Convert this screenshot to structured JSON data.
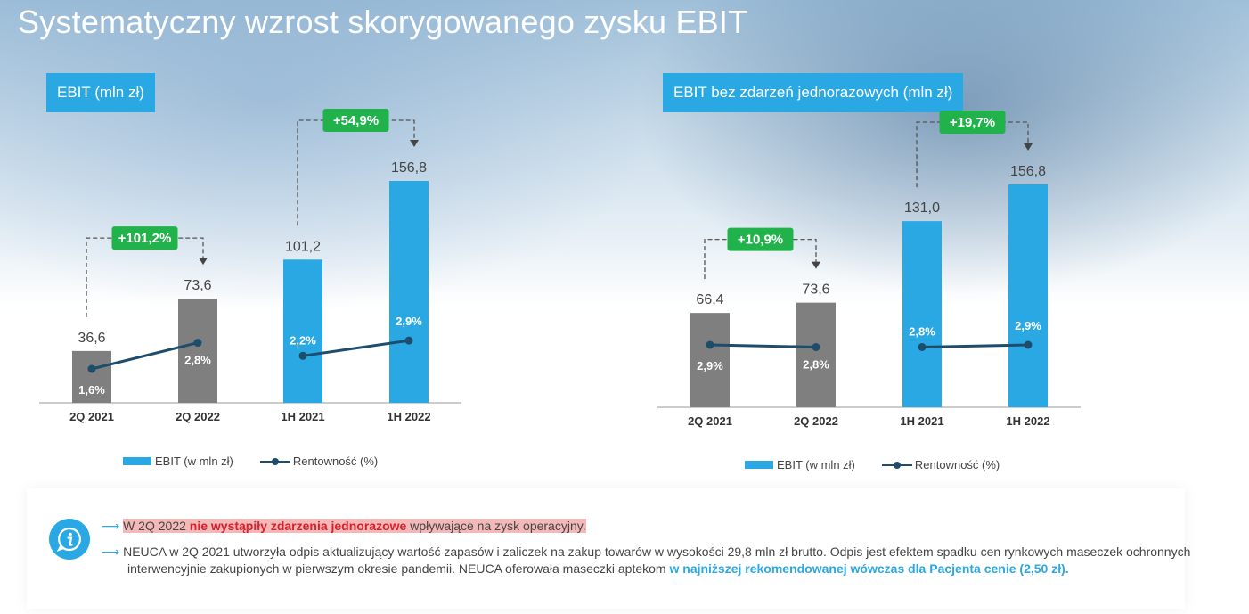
{
  "title": "Systematyczny wzrost skorygowanego zysku EBIT",
  "chart_data": [
    {
      "type": "bar",
      "title": "EBIT (mln zł)",
      "categories": [
        "2Q 2021",
        "2Q 2022",
        "1H 2021",
        "1H 2022"
      ],
      "series": [
        {
          "name": "EBIT (w mln zł)",
          "values": [
            36.6,
            73.6,
            101.2,
            156.8
          ],
          "labels": [
            "36,6",
            "73,6",
            "101,2",
            "156,8"
          ]
        },
        {
          "name": "Rentowność (%)",
          "type": "line",
          "values": [
            1.6,
            2.8,
            2.2,
            2.9
          ],
          "labels": [
            "1,6%",
            "2,8%",
            "2,2%",
            "2,9%"
          ]
        }
      ],
      "bar_colors": [
        "#7f7f7f",
        "#7f7f7f",
        "#2aa8e3",
        "#2aa8e3"
      ],
      "line_color": "#1e4d6b",
      "annotations": [
        {
          "text": "+101,2%",
          "from": "2Q 2021",
          "to": "2Q 2022",
          "color": "#21b24b"
        },
        {
          "text": "+54,9%",
          "from": "1H 2021",
          "to": "1H 2022",
          "color": "#21b24b"
        }
      ],
      "legend": "bottom"
    },
    {
      "type": "bar",
      "title": "EBIT bez zdarzeń jednorazowych (mln zł)",
      "categories": [
        "2Q 2021",
        "2Q 2022",
        "1H 2021",
        "1H 2022"
      ],
      "series": [
        {
          "name": "EBIT (w mln zł)",
          "values": [
            66.4,
            73.6,
            131.0,
            156.8
          ],
          "labels": [
            "66,4",
            "73,6",
            "131,0",
            "156,8"
          ]
        },
        {
          "name": "Rentowność (%)",
          "type": "line",
          "values": [
            2.9,
            2.8,
            2.8,
            2.9
          ],
          "labels": [
            "2,9%",
            "2,8%",
            "2,8%",
            "2,9%"
          ]
        }
      ],
      "bar_colors": [
        "#7f7f7f",
        "#7f7f7f",
        "#2aa8e3",
        "#2aa8e3"
      ],
      "line_color": "#1e4d6b",
      "annotations": [
        {
          "text": "+10,9%",
          "from": "2Q 2021",
          "to": "2Q 2022",
          "color": "#21b24b"
        },
        {
          "text": "+19,7%",
          "from": "1H 2021",
          "to": "1H 2022",
          "color": "#21b24b"
        }
      ],
      "legend": "bottom"
    }
  ],
  "notes": {
    "icon": "info-icon",
    "bullet1": {
      "pre": "W 2Q 2022 ",
      "bold": "nie wystąpiły zdarzenia jednorazowe",
      "post": " wpływające na zysk operacyjny."
    },
    "bullet2": {
      "text": "NEUCA w 2Q 2021 utworzyła odpis aktualizujący wartość zapasów i zaliczek na zakup towarów w wysokości 29,8 mln zł brutto. Odpis jest efektem spadku cen rynkowych maseczek ochronnych interwencyjnie zakupionych w pierwszym okresie pandemii. NEUCA oferowała maseczki aptekom ",
      "bold": "w najniższej rekomendowanej wówczas dla Pacjenta cenie (2,50 zł)."
    }
  }
}
